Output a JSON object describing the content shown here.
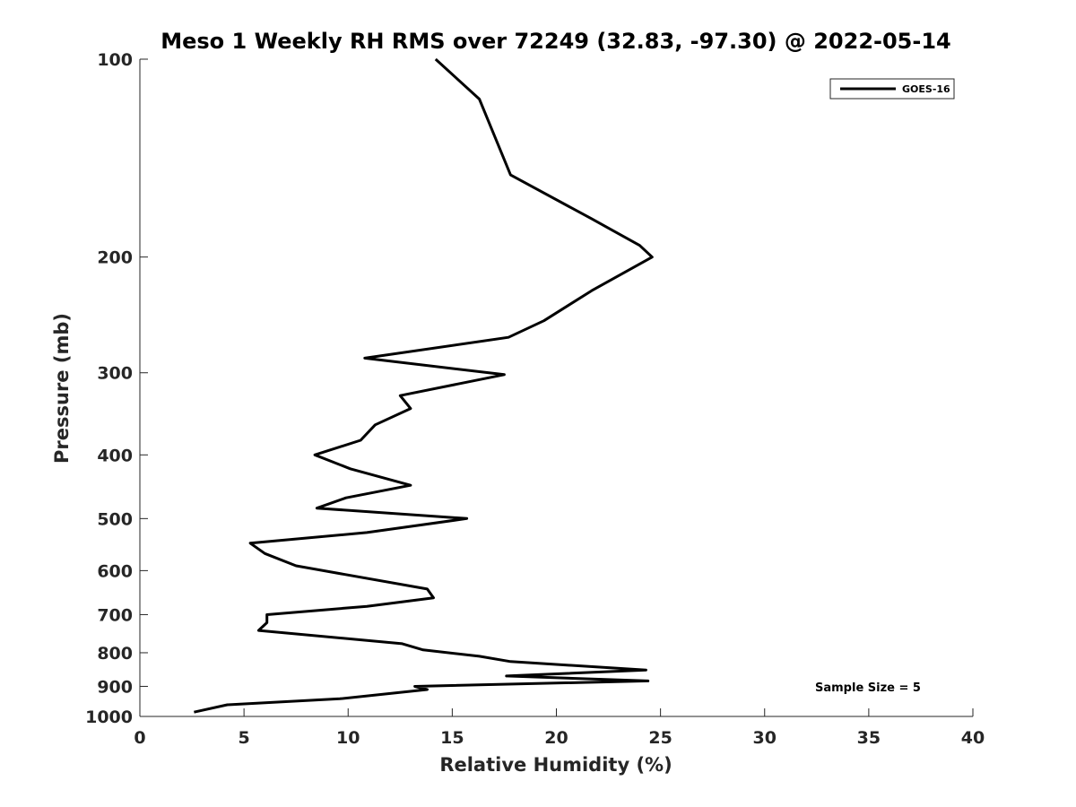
{
  "chart_data": {
    "type": "line",
    "title": "Meso 1 Weekly RH RMS over 72249 (32.83, -97.30) @ 2022-05-14",
    "xlabel": "Relative Humidity (%)",
    "ylabel": "Pressure (mb)",
    "xlim": [
      0,
      40
    ],
    "ylim": [
      100,
      1000
    ],
    "y_scale": "log",
    "y_reversed": true,
    "x_ticks": [
      0,
      5,
      10,
      15,
      20,
      25,
      30,
      35,
      40
    ],
    "x_tick_labels": [
      "0",
      "5",
      "10",
      "15",
      "20",
      "25",
      "30",
      "35",
      "40"
    ],
    "y_ticks": [
      100,
      200,
      300,
      400,
      500,
      600,
      700,
      800,
      900,
      1000
    ],
    "y_tick_labels": [
      "100",
      "200",
      "300",
      "400",
      "500",
      "600",
      "700",
      "800",
      "900",
      "1000"
    ],
    "grid": false,
    "legend_position": "top-right",
    "line_color": "#000000",
    "annotation": "Sample Size = 5",
    "series": [
      {
        "name": "GOES-16",
        "x": [
          14.2,
          16.3,
          17.8,
          21.7,
          24.0,
          24.6,
          21.7,
          19.4,
          17.7,
          10.8,
          17.5,
          12.5,
          13.0,
          11.3,
          10.6,
          8.4,
          10.1,
          13.0,
          9.9,
          8.5,
          15.7,
          10.9,
          5.3,
          6.0,
          7.5,
          13.8,
          14.1,
          10.9,
          6.1,
          6.1,
          5.7,
          12.6,
          13.6,
          16.3,
          17.8,
          24.3,
          17.6,
          24.4,
          13.2,
          13.8,
          9.6,
          4.2,
          2.6
        ],
        "y": [
          100,
          115,
          150,
          175,
          192,
          200,
          225,
          250,
          265,
          285,
          302,
          325,
          340,
          360,
          380,
          400,
          420,
          445,
          465,
          482,
          500,
          525,
          545,
          565,
          590,
          640,
          660,
          680,
          700,
          720,
          740,
          775,
          792,
          810,
          825,
          850,
          868,
          883,
          900,
          910,
          940,
          960,
          985
        ]
      }
    ]
  }
}
